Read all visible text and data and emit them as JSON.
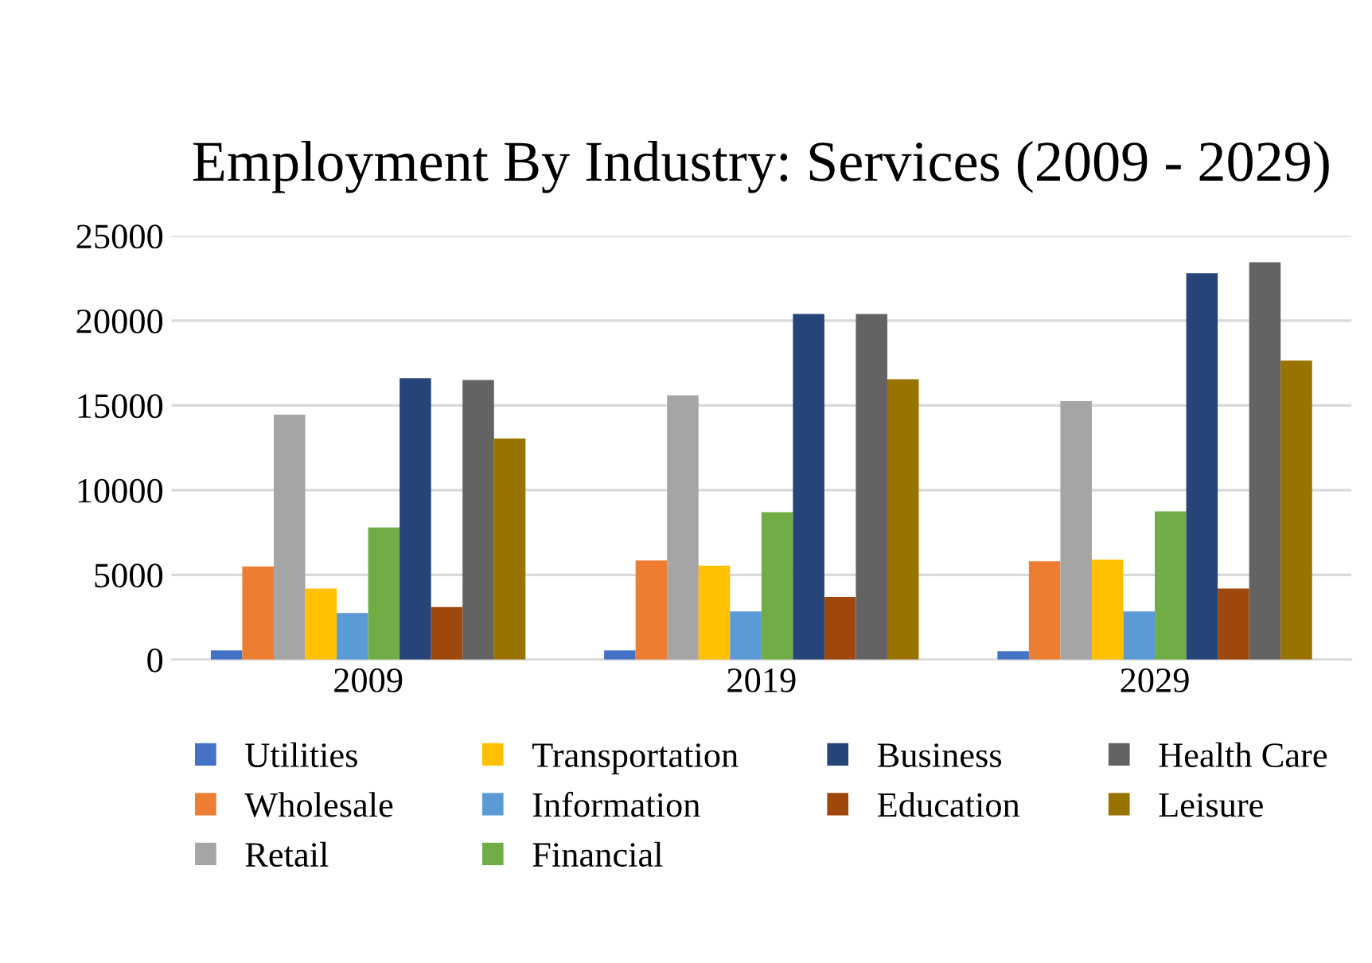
{
  "chart_data": {
    "type": "bar",
    "title": "Employment By Industry: Services (2009 - 2029)",
    "categories": [
      "2009",
      "2019",
      "2029"
    ],
    "series": [
      {
        "name": "Utilities",
        "color": "#4472c4",
        "values": [
          550,
          550,
          500
        ]
      },
      {
        "name": "Wholesale",
        "color": "#ed7d31",
        "values": [
          5500,
          5850,
          5800
        ]
      },
      {
        "name": "Retail",
        "color": "#a5a5a5",
        "values": [
          14450,
          15600,
          15250
        ]
      },
      {
        "name": "Transportation",
        "color": "#ffc000",
        "values": [
          4200,
          5550,
          5900
        ]
      },
      {
        "name": "Information",
        "color": "#5b9bd5",
        "values": [
          2750,
          2850,
          2850
        ]
      },
      {
        "name": "Financial",
        "color": "#70ad47",
        "values": [
          7800,
          8700,
          8750
        ]
      },
      {
        "name": "Business",
        "color": "#264478",
        "values": [
          16600,
          20400,
          22800
        ]
      },
      {
        "name": "Education",
        "color": "#9e480e",
        "values": [
          3100,
          3700,
          4200
        ]
      },
      {
        "name": "Health Care",
        "color": "#636363",
        "values": [
          16500,
          20400,
          23450
        ]
      },
      {
        "name": "Leisure",
        "color": "#997300",
        "values": [
          13050,
          16550,
          17650
        ]
      }
    ],
    "ylim": [
      0,
      25000
    ],
    "yticks": [
      0,
      5000,
      10000,
      15000,
      20000,
      25000
    ],
    "grid": "y",
    "legend": "bottom"
  }
}
